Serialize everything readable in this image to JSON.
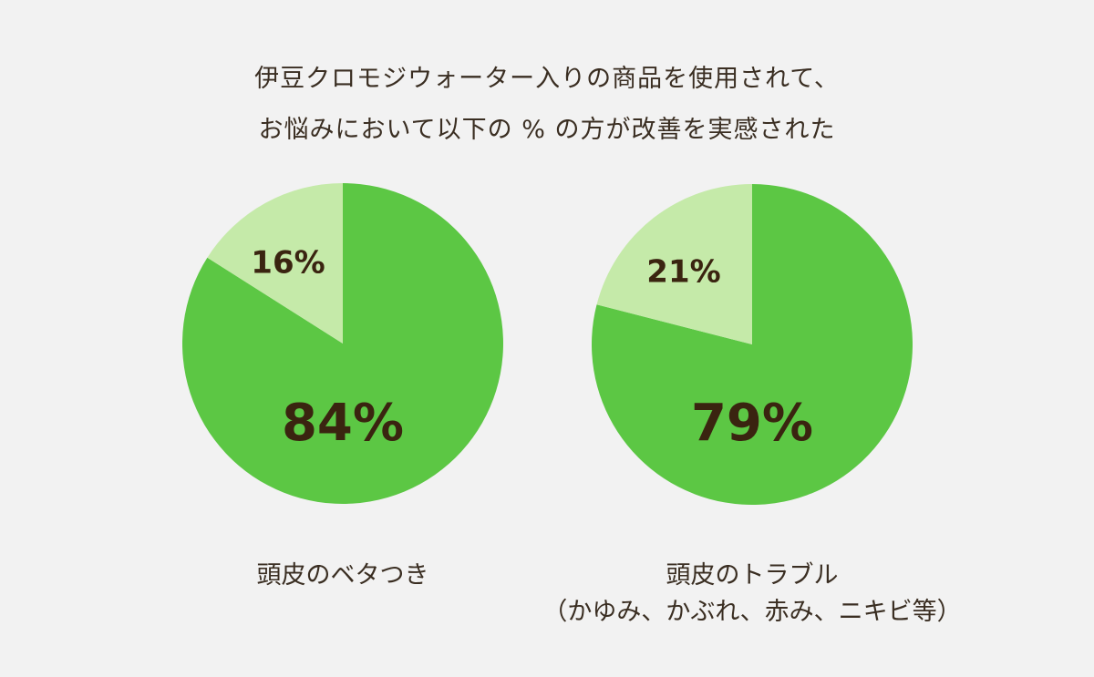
{
  "title_lines": [
    "伊豆クロモジウォーター入りの商品を使用されて、",
    "お悩みにおいて以下の % の方が改善を実感された"
  ],
  "colors": {
    "improved": "#5cc744",
    "not_improved": "#c5eaa9",
    "background": "#f2f2f2",
    "text": "#3a2410"
  },
  "chart_data": [
    {
      "type": "pie",
      "title": "",
      "caption": [
        "頭皮のベタつき"
      ],
      "slices": [
        {
          "label": "84%",
          "value": 84,
          "color": "#5cc744"
        },
        {
          "label": "16%",
          "value": 16,
          "color": "#c5eaa9"
        }
      ]
    },
    {
      "type": "pie",
      "title": "",
      "caption": [
        "頭皮のトラブル",
        "（かゆみ、かぶれ、赤み、ニキビ等）"
      ],
      "slices": [
        {
          "label": "79%",
          "value": 79,
          "color": "#5cc744"
        },
        {
          "label": "21%",
          "value": 21,
          "color": "#c5eaa9"
        }
      ]
    }
  ]
}
